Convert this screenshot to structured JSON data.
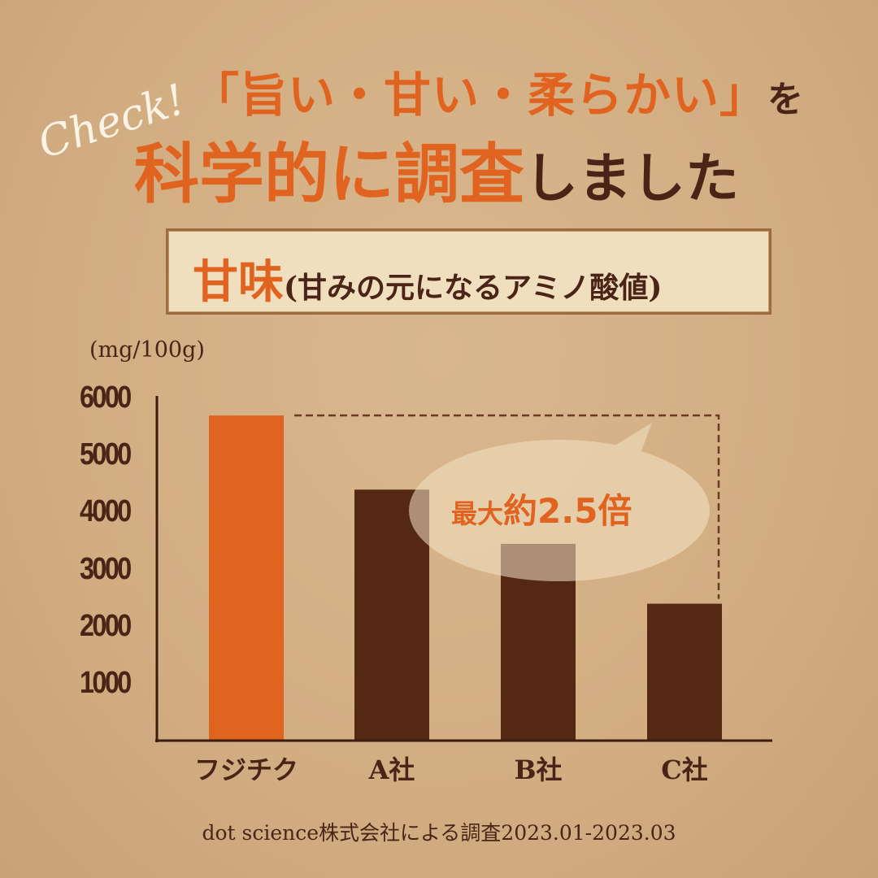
{
  "header": {
    "check": "Check!",
    "line1_accent": "「旨い・甘い・柔らかい」",
    "line1_tail": "を",
    "line2_accent": "科学的に調査",
    "line2_tail": "しました"
  },
  "title_box": {
    "main": "甘味",
    "sub": "(甘みの元になるアミノ酸値)"
  },
  "callout": {
    "prefix": "最大",
    "value": "約2.5倍"
  },
  "footer": {
    "source": "dot science株式会社による調査2023.01-2023.03"
  },
  "colors": {
    "accent": "#e0641f",
    "dark_bar": "#552814",
    "text_dark": "#4a2416",
    "background": "#d4b085"
  },
  "chart_data": {
    "type": "bar",
    "title": "甘味(甘みの元になるアミノ酸値)",
    "ylabel": "(mg/100g)",
    "xlabel": "",
    "categories": [
      "フジチク",
      "A社",
      "B社",
      "C社"
    ],
    "values": [
      5700,
      4400,
      3450,
      2400
    ],
    "bar_colors": [
      "#e0641f",
      "#552814",
      "#552814",
      "#552814"
    ],
    "ylim": [
      0,
      6000
    ],
    "yticks": [
      "6000",
      "5000",
      "4000",
      "3000",
      "2000",
      "1000"
    ],
    "grid": false,
    "annotation": "最大約2.5倍"
  }
}
